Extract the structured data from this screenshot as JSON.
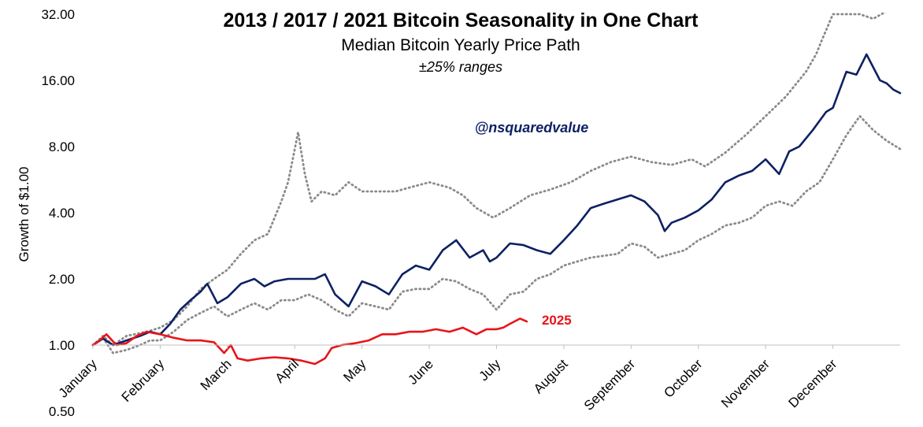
{
  "chart_data": {
    "type": "line",
    "title": "2013 / 2017 / 2021 Bitcoin Seasonality in One Chart",
    "subtitle": "Median Bitcoin Yearly Price Path",
    "range_note": "±25% ranges",
    "watermark": "@nsquaredvalue",
    "ylabel": "Growth of $1.00",
    "xlabel": "",
    "y_scale": "log2",
    "ylim": [
      0.5,
      32
    ],
    "y_ticks": [
      "0.50",
      "1.00",
      "2.00",
      "4.00",
      "8.00",
      "16.00",
      "32.00"
    ],
    "x_ticks": [
      "January",
      "February",
      "March",
      "April",
      "May",
      "June",
      "July",
      "August",
      "September",
      "October",
      "November",
      "December"
    ],
    "x_unit": "month (1.0 = Jan 1, 13.0 = Dec 31)",
    "xlim": [
      1.0,
      13.0
    ],
    "grid": false,
    "legend": "none",
    "series": [
      {
        "key": "median",
        "color": "#0d2163",
        "style": "solid",
        "x": [
          1.0,
          1.15,
          1.3,
          1.5,
          1.7,
          1.85,
          2.0,
          2.15,
          2.3,
          2.45,
          2.6,
          2.7,
          2.85,
          3.0,
          3.2,
          3.4,
          3.55,
          3.7,
          3.9,
          4.1,
          4.3,
          4.45,
          4.6,
          4.8,
          5.0,
          5.2,
          5.4,
          5.6,
          5.8,
          6.0,
          6.2,
          6.4,
          6.6,
          6.8,
          6.9,
          7.0,
          7.2,
          7.4,
          7.6,
          7.8,
          8.0,
          8.2,
          8.4,
          8.6,
          8.8,
          9.0,
          9.2,
          9.4,
          9.5,
          9.6,
          9.8,
          10.0,
          10.2,
          10.4,
          10.6,
          10.8,
          11.0,
          11.2,
          11.35,
          11.5,
          11.7,
          11.9,
          12.0,
          12.2,
          12.35,
          12.5,
          12.7,
          12.8,
          12.9,
          13.0
        ],
        "values": [
          1.0,
          1.07,
          1.0,
          1.05,
          1.1,
          1.15,
          1.12,
          1.25,
          1.45,
          1.6,
          1.75,
          1.9,
          1.55,
          1.65,
          1.9,
          2.0,
          1.85,
          1.95,
          2.0,
          2.0,
          2.0,
          2.1,
          1.7,
          1.5,
          1.95,
          1.85,
          1.7,
          2.1,
          2.3,
          2.2,
          2.7,
          3.0,
          2.5,
          2.7,
          2.4,
          2.5,
          2.9,
          2.85,
          2.7,
          2.6,
          3.0,
          3.5,
          4.2,
          4.4,
          4.6,
          4.8,
          4.5,
          3.9,
          3.3,
          3.6,
          3.8,
          4.1,
          4.6,
          5.5,
          5.9,
          6.2,
          7.0,
          6.0,
          7.6,
          8.0,
          9.5,
          11.5,
          12.0,
          17.5,
          17.0,
          21.0,
          16.0,
          15.5,
          14.5,
          14.0
        ]
      },
      {
        "key": "upper",
        "color": "#8a8a8a",
        "style": "dotted",
        "x": [
          1.0,
          1.15,
          1.3,
          1.5,
          1.8,
          2.0,
          2.2,
          2.4,
          2.6,
          2.8,
          3.0,
          3.2,
          3.4,
          3.6,
          3.8,
          3.9,
          3.97,
          4.05,
          4.15,
          4.25,
          4.4,
          4.6,
          4.8,
          5.0,
          5.3,
          5.5,
          5.7,
          6.0,
          6.3,
          6.5,
          6.7,
          6.95,
          7.2,
          7.5,
          7.8,
          8.1,
          8.4,
          8.7,
          9.0,
          9.3,
          9.6,
          9.9,
          10.1,
          10.4,
          10.7,
          11.0,
          11.3,
          11.6,
          11.75,
          11.85,
          11.92,
          12.0,
          12.4,
          12.6,
          12.8,
          13.0
        ],
        "values": [
          1.0,
          1.1,
          1.0,
          1.1,
          1.15,
          1.2,
          1.3,
          1.5,
          1.8,
          2.0,
          2.2,
          2.6,
          3.0,
          3.2,
          4.5,
          5.5,
          7.0,
          9.3,
          6.0,
          4.5,
          5.0,
          4.8,
          5.5,
          5.0,
          5.0,
          5.0,
          5.2,
          5.5,
          5.2,
          4.8,
          4.2,
          3.8,
          4.2,
          4.8,
          5.1,
          5.5,
          6.2,
          6.8,
          7.2,
          6.8,
          6.6,
          7.0,
          6.5,
          7.5,
          9.0,
          11.0,
          13.5,
          17.5,
          21.0,
          25.0,
          28.0,
          32.0,
          32.0,
          30.5,
          33.0,
          33.0
        ]
      },
      {
        "key": "lower",
        "color": "#8a8a8a",
        "style": "dotted",
        "x": [
          1.0,
          1.15,
          1.3,
          1.5,
          1.7,
          1.85,
          2.0,
          2.2,
          2.4,
          2.6,
          2.8,
          3.0,
          3.2,
          3.4,
          3.6,
          3.8,
          4.0,
          4.2,
          4.4,
          4.6,
          4.8,
          5.0,
          5.2,
          5.4,
          5.6,
          5.8,
          6.0,
          6.2,
          6.4,
          6.6,
          6.8,
          7.0,
          7.2,
          7.4,
          7.6,
          7.8,
          8.0,
          8.2,
          8.4,
          8.6,
          8.8,
          9.0,
          9.2,
          9.4,
          9.6,
          9.8,
          10.0,
          10.2,
          10.4,
          10.6,
          10.8,
          11.0,
          11.2,
          11.4,
          11.6,
          11.8,
          12.0,
          12.2,
          12.4,
          12.6,
          12.8,
          13.0
        ],
        "values": [
          1.0,
          1.08,
          0.92,
          0.95,
          1.0,
          1.05,
          1.05,
          1.15,
          1.3,
          1.4,
          1.5,
          1.35,
          1.45,
          1.55,
          1.45,
          1.6,
          1.6,
          1.7,
          1.6,
          1.45,
          1.35,
          1.55,
          1.5,
          1.45,
          1.75,
          1.8,
          1.8,
          2.0,
          1.95,
          1.8,
          1.7,
          1.45,
          1.7,
          1.75,
          2.0,
          2.1,
          2.3,
          2.4,
          2.5,
          2.55,
          2.6,
          2.9,
          2.8,
          2.5,
          2.6,
          2.7,
          3.0,
          3.2,
          3.5,
          3.6,
          3.8,
          4.3,
          4.5,
          4.3,
          5.0,
          5.5,
          7.0,
          9.0,
          11.0,
          9.5,
          8.5,
          7.8
        ]
      },
      {
        "key": "2025",
        "name": "2025",
        "color": "#e8141a",
        "style": "solid",
        "x": [
          1.0,
          1.1,
          1.2,
          1.35,
          1.5,
          1.65,
          1.8,
          2.0,
          2.2,
          2.4,
          2.6,
          2.8,
          2.95,
          3.05,
          3.15,
          3.3,
          3.5,
          3.7,
          3.9,
          4.1,
          4.3,
          4.45,
          4.55,
          4.7,
          4.9,
          5.1,
          5.3,
          5.5,
          5.7,
          5.9,
          6.1,
          6.3,
          6.5,
          6.7,
          6.85,
          7.0,
          7.1,
          7.2,
          7.35,
          7.45
        ],
        "values": [
          1.0,
          1.05,
          1.12,
          1.0,
          1.02,
          1.1,
          1.15,
          1.12,
          1.08,
          1.05,
          1.05,
          1.03,
          0.92,
          1.0,
          0.87,
          0.85,
          0.87,
          0.88,
          0.87,
          0.85,
          0.82,
          0.87,
          0.97,
          1.0,
          1.02,
          1.05,
          1.12,
          1.12,
          1.15,
          1.15,
          1.18,
          1.15,
          1.2,
          1.12,
          1.18,
          1.18,
          1.2,
          1.25,
          1.32,
          1.28
        ]
      }
    ]
  }
}
